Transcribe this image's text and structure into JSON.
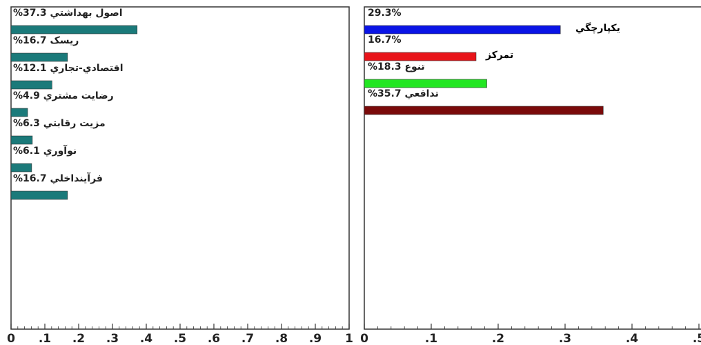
{
  "chart_data": [
    {
      "type": "bar",
      "orientation": "horizontal",
      "categories": [
        "اصول بهداشتي",
        "ريسک",
        "اقتصادي-تجاري",
        "رضايت مشتري",
        "مزيت رقابتي",
        "نوآوري",
        "فرآينداخلي"
      ],
      "value_labels": [
        "37.3%",
        "16.7%",
        "12.1%",
        "4.9%",
        "6.3%",
        "6.1%",
        "16.7%"
      ],
      "values": [
        0.373,
        0.167,
        0.121,
        0.049,
        0.063,
        0.061,
        0.167
      ],
      "xlim": [
        0,
        1
      ],
      "xticks": [
        "0",
        ".1",
        ".2",
        ".3",
        ".4",
        ".5",
        ".6",
        ".7",
        ".8",
        ".9",
        "1"
      ],
      "xticks_values": [
        0,
        0.1,
        0.2,
        0.3,
        0.4,
        0.5,
        0.6,
        0.7,
        0.8,
        0.9,
        1.0
      ],
      "colors": [
        "#1b7a7a"
      ]
    },
    {
      "type": "bar",
      "orientation": "horizontal",
      "categories": [
        "",
        "",
        "تنوع",
        "تدافعي"
      ],
      "value_labels": [
        "29.3%",
        "16.7%",
        "18.3%",
        "35.7%"
      ],
      "values": [
        0.293,
        0.167,
        0.183,
        0.357
      ],
      "annotations": [
        "يکپارچگي",
        "تمرکز"
      ],
      "xlim": [
        0,
        0.5
      ],
      "xticks": [
        "0",
        ".1",
        ".2",
        ".3",
        ".4",
        ".5"
      ],
      "xticks_values": [
        0,
        0.1,
        0.2,
        0.3,
        0.4,
        0.5
      ],
      "colors": [
        "#0a14e6",
        "#e8141a",
        "#22e622",
        "#7a0a0a"
      ]
    }
  ]
}
